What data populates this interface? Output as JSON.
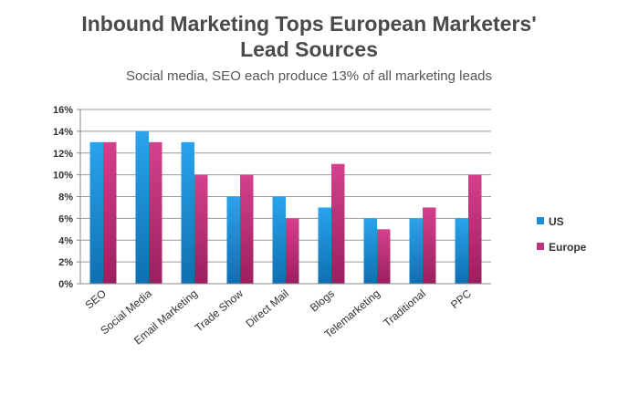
{
  "chart_data": {
    "type": "bar",
    "title": "Inbound Marketing Tops European Marketers' Lead Sources",
    "title_lines": [
      "Inbound Marketing Tops European Marketers'",
      "Lead Sources"
    ],
    "subtitle": "Social media, SEO each produce 13% of all marketing leads",
    "categories": [
      "SEO",
      "Social Media",
      "Email Marketing",
      "Trade Show",
      "Direct Mail",
      "Blogs",
      "Telemarketing",
      "Traditional",
      "PPC"
    ],
    "series": [
      {
        "name": "US",
        "values": [
          13,
          14,
          13,
          8,
          8,
          7,
          6,
          6,
          6
        ],
        "color": "#1a8fd6"
      },
      {
        "name": "Europe",
        "values": [
          13,
          13,
          10,
          10,
          6,
          11,
          5,
          7,
          10
        ],
        "color": "#c0307a"
      }
    ],
    "ylim": [
      0,
      16
    ],
    "yticks": [
      "0%",
      "2%",
      "4%",
      "6%",
      "8%",
      "10%",
      "12%",
      "14%",
      "16%"
    ],
    "ytick_values": [
      0,
      2,
      4,
      6,
      8,
      10,
      12,
      14,
      16
    ],
    "grid": true,
    "legend_position": "right"
  }
}
